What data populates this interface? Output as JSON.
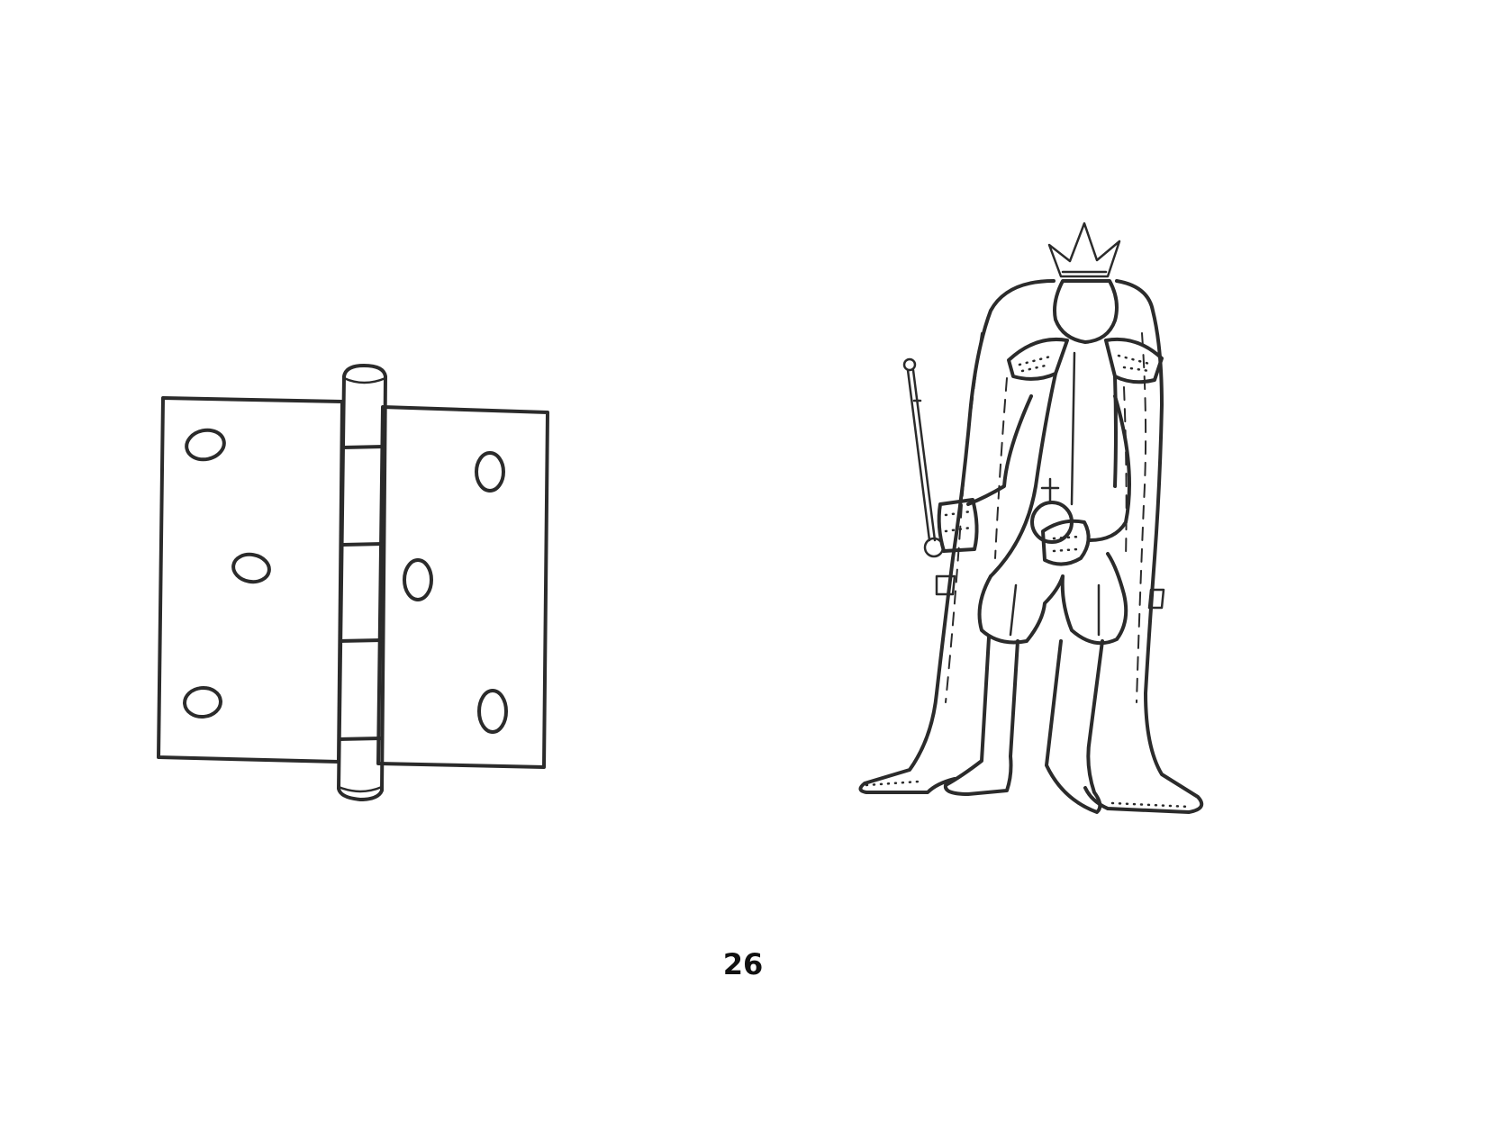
{
  "page": {
    "number": "26"
  },
  "illustrations": {
    "left": {
      "icon": "door-hinge-drawing"
    },
    "right": {
      "icon": "king-drawing"
    }
  },
  "colors": {
    "ink": "#2b2b2b",
    "background": "#ffffff"
  }
}
